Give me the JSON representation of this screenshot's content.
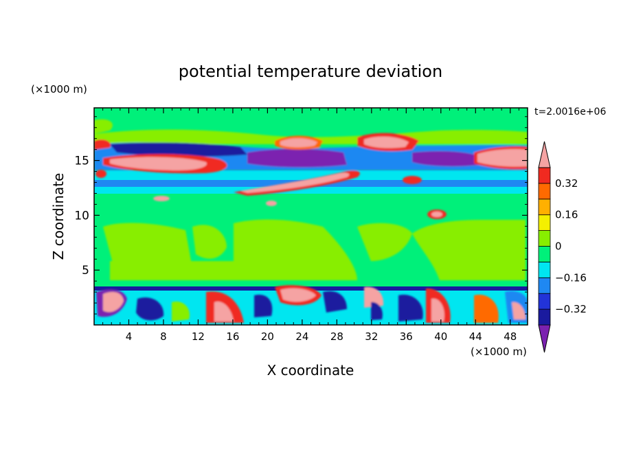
{
  "chart_data": {
    "type": "heatmap",
    "title": "potential temperature deviation",
    "xlabel": "X coordinate",
    "ylabel": "Z coordinate",
    "x_units": "(×1000 m)",
    "y_units": "(×1000 m)",
    "time_label": "t=2.0016e+06",
    "xlim": [
      0,
      50
    ],
    "ylim": [
      0,
      19.8
    ],
    "x_ticks": [
      4,
      8,
      12,
      16,
      20,
      24,
      28,
      32,
      36,
      40,
      44,
      48
    ],
    "y_ticks": [
      5,
      10,
      15
    ],
    "colorbar": {
      "levels": [
        -0.4,
        -0.32,
        -0.24,
        -0.16,
        -0.08,
        0,
        0.08,
        0.16,
        0.24,
        0.32,
        0.4
      ],
      "tick_labels": [
        "0.32",
        "0.16",
        "0",
        "−0.16",
        "−0.32"
      ],
      "tick_values": [
        0.32,
        0.16,
        0,
        -0.16,
        -0.32
      ],
      "colors": [
        "#7b22b0",
        "#1a1a9e",
        "#2233d8",
        "#1f88f2",
        "#00e6f0",
        "#00f07a",
        "#88ee00",
        "#f4f000",
        "#ffb000",
        "#ff6a00",
        "#f02a20",
        "#f5a3a3"
      ]
    },
    "background_level_color": "#00f07a"
  }
}
